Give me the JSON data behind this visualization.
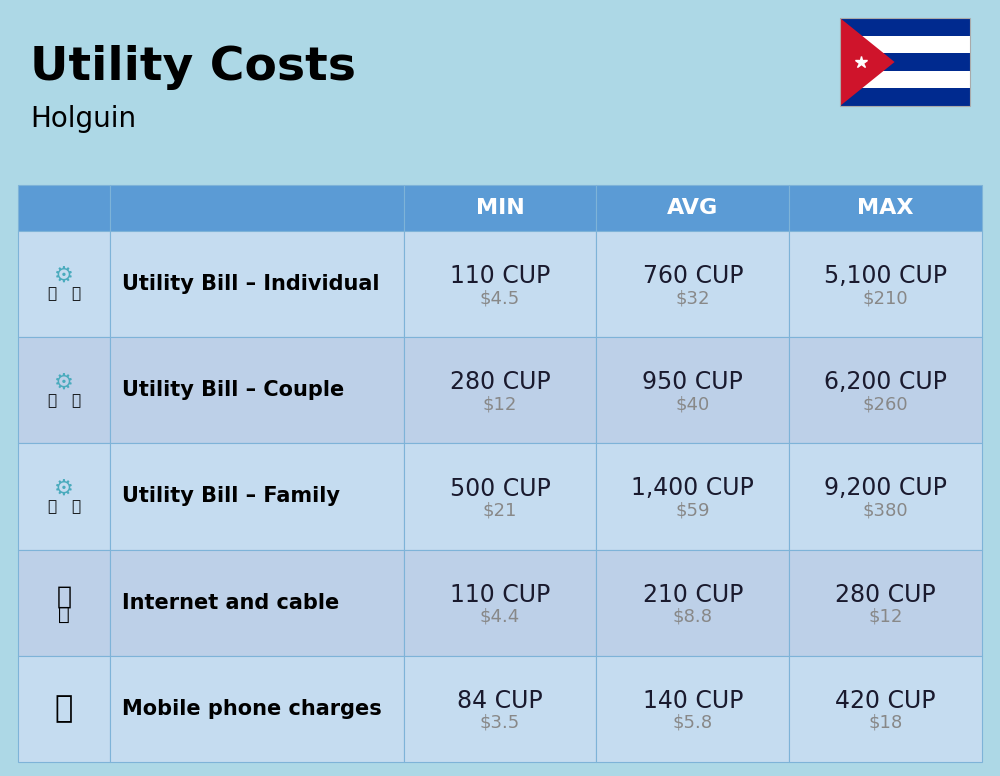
{
  "title": "Utility Costs",
  "subtitle": "Holguin",
  "background_color": "#ADD8E6",
  "header_bg_color": "#5B9BD5",
  "header_text_color": "#FFFFFF",
  "row_bg_color_1": "#C5DCF0",
  "row_bg_color_2": "#BDD0E8",
  "cell_line_color": "#7EB3D8",
  "col_headers": [
    "MIN",
    "AVG",
    "MAX"
  ],
  "rows": [
    {
      "label": "Utility Bill – Individual",
      "min_cup": "110 CUP",
      "min_usd": "$4.5",
      "avg_cup": "760 CUP",
      "avg_usd": "$32",
      "max_cup": "5,100 CUP",
      "max_usd": "$210"
    },
    {
      "label": "Utility Bill – Couple",
      "min_cup": "280 CUP",
      "min_usd": "$12",
      "avg_cup": "950 CUP",
      "avg_usd": "$40",
      "max_cup": "6,200 CUP",
      "max_usd": "$260"
    },
    {
      "label": "Utility Bill – Family",
      "min_cup": "500 CUP",
      "min_usd": "$21",
      "avg_cup": "1,400 CUP",
      "avg_usd": "$59",
      "max_cup": "9,200 CUP",
      "max_usd": "$380"
    },
    {
      "label": "Internet and cable",
      "min_cup": "110 CUP",
      "min_usd": "$4.4",
      "avg_cup": "210 CUP",
      "avg_usd": "$8.8",
      "max_cup": "280 CUP",
      "max_usd": "$12"
    },
    {
      "label": "Mobile phone charges",
      "min_cup": "84 CUP",
      "min_usd": "$3.5",
      "avg_cup": "140 CUP",
      "avg_usd": "$5.8",
      "max_cup": "420 CUP",
      "max_usd": "$18"
    }
  ],
  "title_fontsize": 34,
  "subtitle_fontsize": 20,
  "header_fontsize": 16,
  "label_fontsize": 15,
  "cup_fontsize": 17,
  "usd_fontsize": 13,
  "cup_color": "#1a1a2e",
  "usd_color": "#888888",
  "flag_stripe_colors": [
    "#002A8F",
    "#FFFFFF",
    "#002A8F",
    "#FFFFFF",
    "#002A8F"
  ],
  "flag_triangle_color": "#CF142B"
}
